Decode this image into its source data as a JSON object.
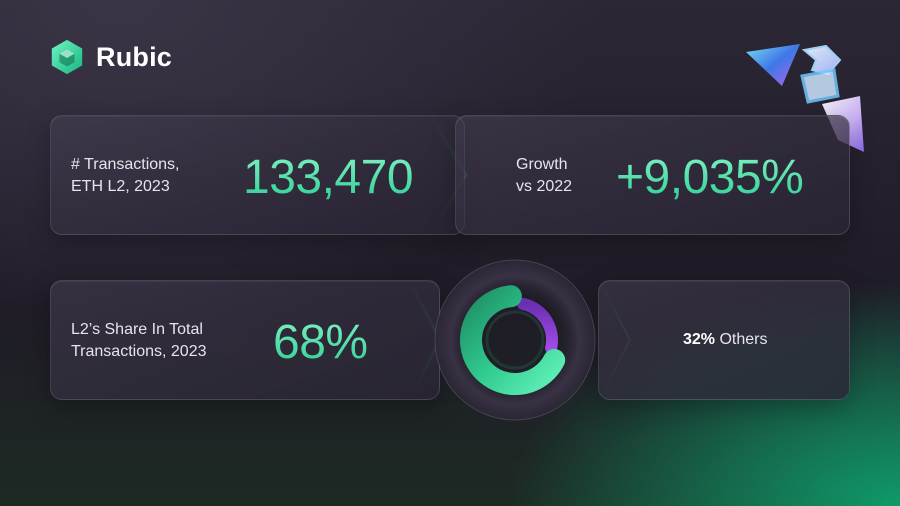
{
  "brand": {
    "name": "Rubic",
    "logo_icon": "cube-icon",
    "accent": "#2fe3a1"
  },
  "stats": {
    "transactions": {
      "label_line1": "# Transactions,",
      "label_line2": "ETH L2, 2023",
      "value": "133,470"
    },
    "growth": {
      "label_line1": "Growth",
      "label_line2": "vs 2022",
      "value": "+9,035%"
    },
    "share": {
      "label_line1": "L2’s Share In Total",
      "label_line2": "Transactions, 2023",
      "value": "68%"
    },
    "others": {
      "percent": "32%",
      "label": "Others"
    }
  },
  "donut": {
    "l2_share": 0.68,
    "others_share": 0.32,
    "l2_color": "#2fc98e",
    "others_color": "#8a3fd1"
  },
  "decoration": {
    "icon": "prism-shapes-icon"
  }
}
